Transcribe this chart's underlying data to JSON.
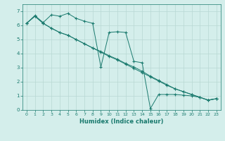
{
  "title": "",
  "xlabel": "Humidex (Indice chaleur)",
  "bg_color": "#d4eeeb",
  "line_color": "#1a7a6e",
  "grid_color": "#b8d8d4",
  "xlim": [
    -0.5,
    23.5
  ],
  "ylim": [
    0,
    7.5
  ],
  "xticks": [
    0,
    1,
    2,
    3,
    4,
    5,
    6,
    7,
    8,
    9,
    10,
    11,
    12,
    13,
    14,
    15,
    16,
    17,
    18,
    19,
    20,
    21,
    22,
    23
  ],
  "yticks": [
    0,
    1,
    2,
    3,
    4,
    5,
    6,
    7
  ],
  "series1_x": [
    0,
    1,
    2,
    3,
    4,
    5,
    6,
    7,
    8,
    9,
    10,
    11,
    12,
    13,
    14,
    15,
    16,
    17,
    18,
    19,
    20,
    21,
    22,
    23
  ],
  "series1_y": [
    6.15,
    6.65,
    6.15,
    5.8,
    5.5,
    5.3,
    5.0,
    4.7,
    4.4,
    4.1,
    3.8,
    3.55,
    3.25,
    2.95,
    2.65,
    2.35,
    2.05,
    1.75,
    1.5,
    1.3,
    1.1,
    0.9,
    0.7,
    0.8
  ],
  "series2_x": [
    0,
    1,
    2,
    3,
    4,
    5,
    6,
    7,
    8,
    9,
    10,
    11,
    12,
    13,
    14,
    15,
    16,
    17,
    18,
    19,
    20,
    21,
    22,
    23
  ],
  "series2_y": [
    6.15,
    6.7,
    6.2,
    6.75,
    6.65,
    6.85,
    6.5,
    6.3,
    6.15,
    3.05,
    5.5,
    5.55,
    5.5,
    3.45,
    3.35,
    0.1,
    1.1,
    1.1,
    1.1,
    1.05,
    1.0,
    0.9,
    0.7,
    0.8
  ],
  "series3_x": [
    0,
    1,
    2,
    3,
    4,
    5,
    6,
    7,
    8,
    9,
    10,
    11,
    12,
    13,
    14,
    15,
    16,
    17,
    18,
    19,
    20,
    21,
    22,
    23
  ],
  "series3_y": [
    6.15,
    6.65,
    6.15,
    5.8,
    5.5,
    5.3,
    5.0,
    4.7,
    4.4,
    4.15,
    3.85,
    3.6,
    3.3,
    3.05,
    2.75,
    2.4,
    2.1,
    1.8,
    1.5,
    1.3,
    1.1,
    0.9,
    0.7,
    0.8
  ]
}
